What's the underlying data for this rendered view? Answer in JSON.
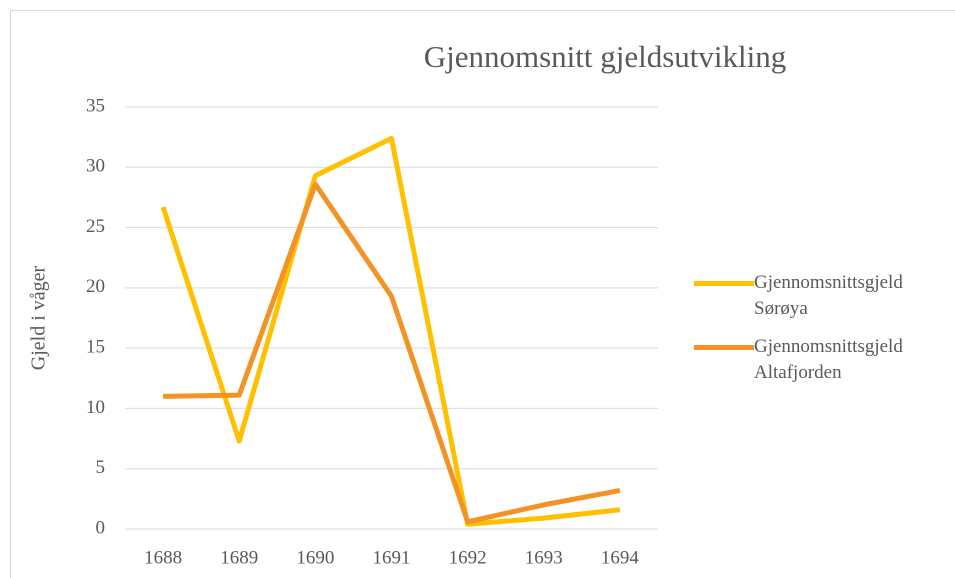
{
  "chart_data": {
    "type": "line",
    "title": "Gjennomsnitt gjeldsutvikling",
    "y_label": "Gjeld i våger",
    "categories": [
      "1688",
      "1689",
      "1690",
      "1691",
      "1692",
      "1693",
      "1694"
    ],
    "series": [
      {
        "name": "Gjennomsnittsgjeld Sørøya",
        "color": "#ffc000",
        "values": [
          26.7,
          7.3,
          29.3,
          32.4,
          0.4,
          0.9,
          1.6
        ]
      },
      {
        "name": "Gjennomsnittsgjeld Altafjorden",
        "color": "#f39325",
        "values": [
          11.0,
          11.1,
          28.6,
          19.3,
          0.6,
          2.0,
          3.2
        ]
      }
    ],
    "ylim": [
      0,
      35
    ],
    "yticks": [
      0,
      5,
      10,
      15,
      20,
      25,
      30,
      35
    ],
    "grid": true,
    "legend": "right"
  }
}
